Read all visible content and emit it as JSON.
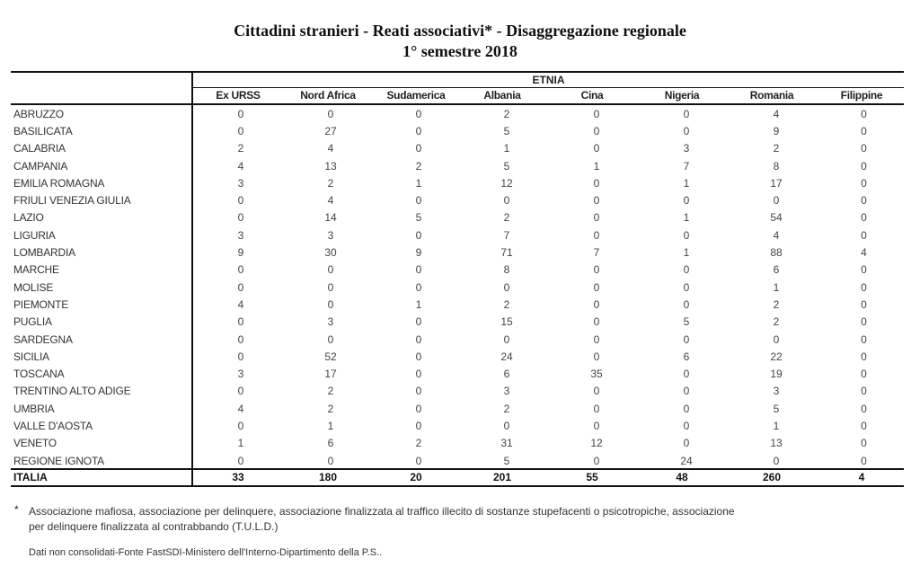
{
  "title": "Cittadini stranieri - Reati associativi* - Disaggregazione regionale",
  "subtitle": "1° semestre 2018",
  "group_header": "ETNIA",
  "columns": [
    "Ex URSS",
    "Nord Africa",
    "Sudamerica",
    "Albania",
    "Cina",
    "Nigeria",
    "Romania",
    "Filippine"
  ],
  "rows": [
    {
      "region": "ABRUZZO",
      "values": [
        0,
        0,
        0,
        2,
        0,
        0,
        4,
        0
      ]
    },
    {
      "region": "BASILICATA",
      "values": [
        0,
        27,
        0,
        5,
        0,
        0,
        9,
        0
      ]
    },
    {
      "region": "CALABRIA",
      "values": [
        2,
        4,
        0,
        1,
        0,
        3,
        2,
        0
      ]
    },
    {
      "region": "CAMPANIA",
      "values": [
        4,
        13,
        2,
        5,
        1,
        7,
        8,
        0
      ]
    },
    {
      "region": "EMILIA ROMAGNA",
      "values": [
        3,
        2,
        1,
        12,
        0,
        1,
        17,
        0
      ]
    },
    {
      "region": "FRIULI VENEZIA GIULIA",
      "values": [
        0,
        4,
        0,
        0,
        0,
        0,
        0,
        0
      ]
    },
    {
      "region": "LAZIO",
      "values": [
        0,
        14,
        5,
        2,
        0,
        1,
        54,
        0
      ]
    },
    {
      "region": "LIGURIA",
      "values": [
        3,
        3,
        0,
        7,
        0,
        0,
        4,
        0
      ]
    },
    {
      "region": "LOMBARDIA",
      "values": [
        9,
        30,
        9,
        71,
        7,
        1,
        88,
        4
      ]
    },
    {
      "region": "MARCHE",
      "values": [
        0,
        0,
        0,
        8,
        0,
        0,
        6,
        0
      ]
    },
    {
      "region": "MOLISE",
      "values": [
        0,
        0,
        0,
        0,
        0,
        0,
        1,
        0
      ]
    },
    {
      "region": "PIEMONTE",
      "values": [
        4,
        0,
        1,
        2,
        0,
        0,
        2,
        0
      ]
    },
    {
      "region": "PUGLIA",
      "values": [
        0,
        3,
        0,
        15,
        0,
        5,
        2,
        0
      ]
    },
    {
      "region": "SARDEGNA",
      "values": [
        0,
        0,
        0,
        0,
        0,
        0,
        0,
        0
      ]
    },
    {
      "region": "SICILIA",
      "values": [
        0,
        52,
        0,
        24,
        0,
        6,
        22,
        0
      ]
    },
    {
      "region": "TOSCANA",
      "values": [
        3,
        17,
        0,
        6,
        35,
        0,
        19,
        0
      ]
    },
    {
      "region": "TRENTINO ALTO ADIGE",
      "values": [
        0,
        2,
        0,
        3,
        0,
        0,
        3,
        0
      ]
    },
    {
      "region": "UMBRIA",
      "values": [
        4,
        2,
        0,
        2,
        0,
        0,
        5,
        0
      ]
    },
    {
      "region": "VALLE D'AOSTA",
      "values": [
        0,
        1,
        0,
        0,
        0,
        0,
        1,
        0
      ]
    },
    {
      "region": "VENETO",
      "values": [
        1,
        6,
        2,
        31,
        12,
        0,
        13,
        0
      ]
    },
    {
      "region": "REGIONE IGNOTA",
      "values": [
        0,
        0,
        0,
        5,
        0,
        24,
        0,
        0
      ]
    }
  ],
  "total": {
    "label": "ITALIA",
    "values": [
      33,
      180,
      20,
      201,
      55,
      48,
      260,
      4
    ]
  },
  "footnote_marker": "*",
  "footnote_line1": "Associazione mafiosa, associazione per delinquere, associazione finalizzata al traffico illecito di sostanze stupefacenti o psicotropiche, associazione",
  "footnote_line2": "per delinquere finalizzata al contrabbando  (T.U.L.D.)",
  "source": "Dati non consolidati-Fonte FastSDI-Ministero dell'Interno-Dipartimento della P.S.."
}
